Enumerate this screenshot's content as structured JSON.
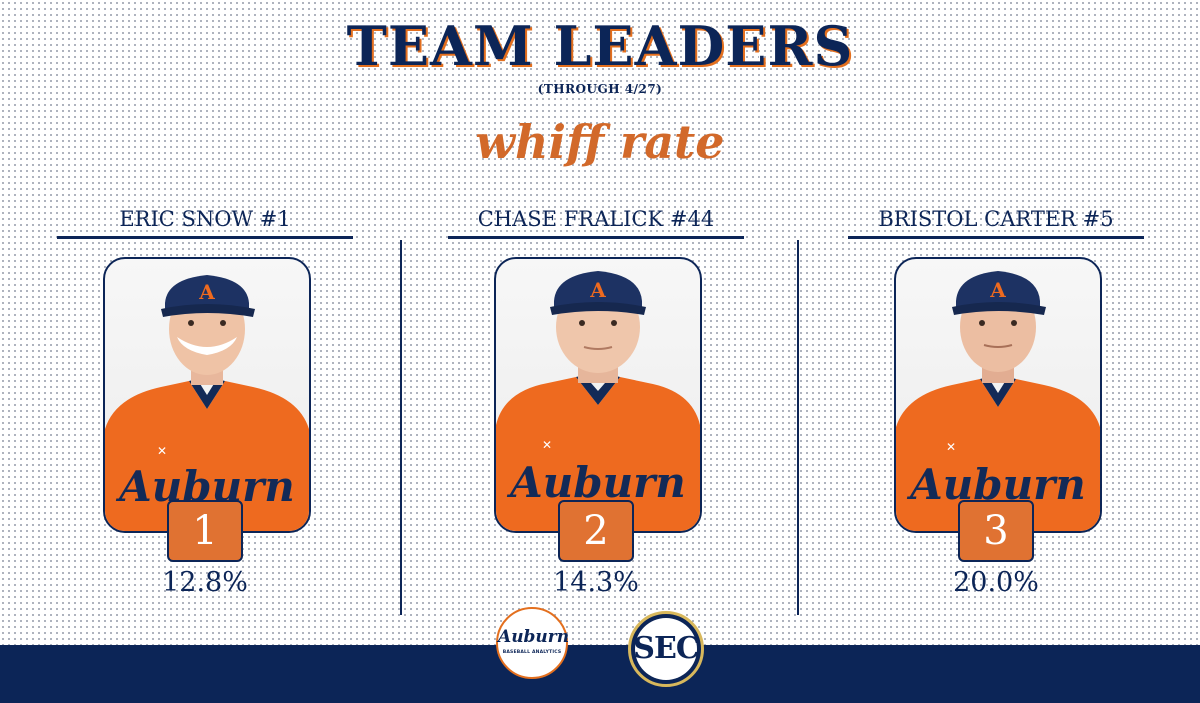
{
  "header": {
    "title": "TEAM LEADERS",
    "subtitle": "(THROUGH 4/27)",
    "stat": "whiff rate"
  },
  "leaders": [
    {
      "name": "ERIC SNOW #1",
      "rank": "1",
      "value": "12.8%"
    },
    {
      "name": "CHASE FRALICK #44",
      "rank": "2",
      "value": "14.3%"
    },
    {
      "name": "BRISTOL CARTER #5",
      "rank": "3",
      "value": "20.0%"
    }
  ],
  "footer": {
    "auburn_logo_script": "Auburn",
    "auburn_logo_sub": "BASEBALL ANALYTICS",
    "sec_logo": "SEC"
  },
  "colors": {
    "navy": "#0c2557",
    "orange": "#e07232",
    "stat_orange": "#d2692a"
  }
}
